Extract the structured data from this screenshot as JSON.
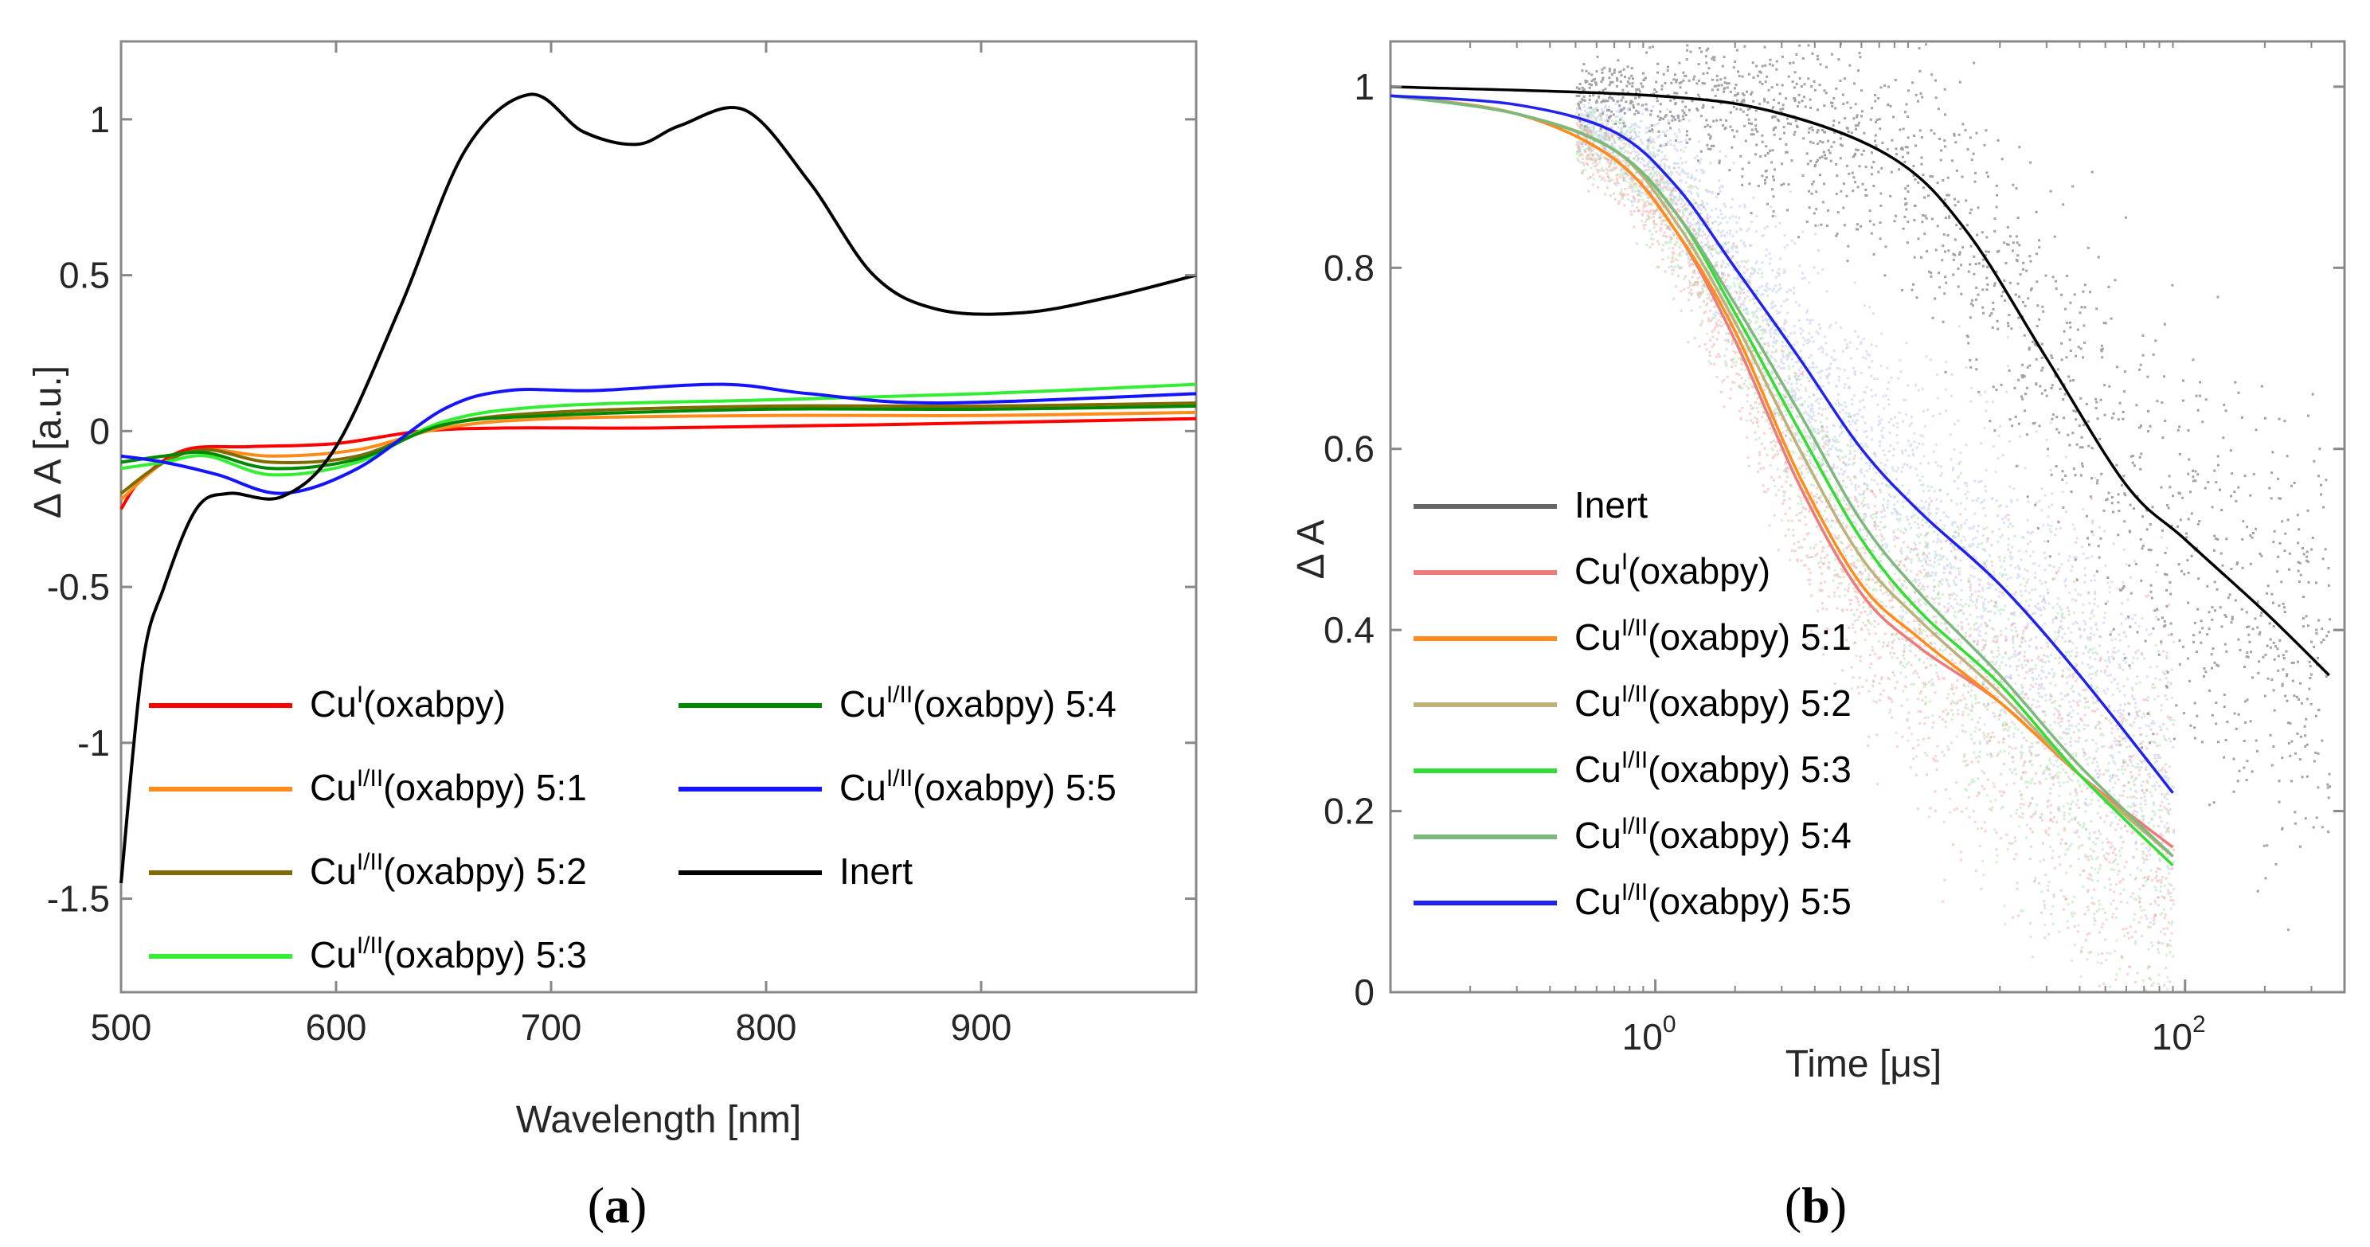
{
  "chart_data": [
    {
      "type": "line",
      "panel_label": "a",
      "xlabel": "Wavelength [nm]",
      "ylabel": "Δ A [a.u.]",
      "xlim": [
        500,
        1000
      ],
      "ylim": [
        -1.8,
        1.25
      ],
      "xticks": [
        500,
        600,
        700,
        800,
        900
      ],
      "yticks": [
        -1.5,
        -1,
        -0.5,
        0,
        0.5,
        1
      ],
      "xtick_labels": [
        "500",
        "600",
        "700",
        "800",
        "900"
      ],
      "ytick_labels": [
        "-1.5",
        "-1",
        "-0.5",
        "0",
        "0.5",
        "1"
      ],
      "grid": false,
      "legend_position": "lower-left",
      "series": [
        {
          "name": "Cu(oxabpy)",
          "legend_base": "Cu",
          "legend_sup": "I",
          "legend_rest": "(oxabpy)",
          "color": "#ff0000",
          "x": [
            500,
            510,
            530,
            560,
            600,
            640,
            680,
            750,
            850,
            1000
          ],
          "y": [
            -0.25,
            -0.15,
            -0.06,
            -0.05,
            -0.04,
            0.0,
            0.01,
            0.01,
            0.02,
            0.04
          ]
        },
        {
          "name": "Cu(oxabpy) 5:1",
          "legend_base": "Cu",
          "legend_sup": "I/II",
          "legend_rest": "(oxabpy) 5:1",
          "color": "#ff8c1a",
          "x": [
            500,
            520,
            540,
            570,
            610,
            650,
            700,
            800,
            900,
            1000
          ],
          "y": [
            -0.22,
            -0.1,
            -0.06,
            -0.08,
            -0.06,
            0.01,
            0.04,
            0.05,
            0.05,
            0.06
          ]
        },
        {
          "name": "Cu(oxabpy) 5:2",
          "legend_base": "Cu",
          "legend_sup": "I/II",
          "legend_rest": "(oxabpy) 5:2",
          "color": "#7f6b00",
          "x": [
            500,
            520,
            540,
            570,
            610,
            650,
            700,
            800,
            900,
            1000
          ],
          "y": [
            -0.2,
            -0.1,
            -0.06,
            -0.1,
            -0.08,
            0.02,
            0.06,
            0.08,
            0.08,
            0.09
          ]
        },
        {
          "name": "Cu(oxabpy) 5:3",
          "legend_base": "Cu",
          "legend_sup": "I/II",
          "legend_rest": "(oxabpy) 5:3",
          "color": "#33ee33",
          "x": [
            500,
            520,
            540,
            570,
            610,
            650,
            700,
            800,
            900,
            1000
          ],
          "y": [
            -0.12,
            -0.1,
            -0.08,
            -0.14,
            -0.1,
            0.03,
            0.08,
            0.1,
            0.12,
            0.15
          ]
        },
        {
          "name": "Cu(oxabpy) 5:4",
          "legend_base": "Cu",
          "legend_sup": "I/II",
          "legend_rest": "(oxabpy) 5:4",
          "color": "#008800",
          "x": [
            500,
            520,
            540,
            570,
            610,
            650,
            700,
            800,
            900,
            1000
          ],
          "y": [
            -0.1,
            -0.08,
            -0.07,
            -0.12,
            -0.09,
            0.02,
            0.05,
            0.07,
            0.07,
            0.08
          ]
        },
        {
          "name": "Cu(oxabpy) 5:5",
          "legend_base": "Cu",
          "legend_sup": "I/II",
          "legend_rest": "(oxabpy) 5:5",
          "color": "#1414ff",
          "x": [
            500,
            520,
            545,
            575,
            610,
            650,
            680,
            720,
            780,
            820,
            880,
            1000
          ],
          "y": [
            -0.08,
            -0.1,
            -0.14,
            -0.2,
            -0.12,
            0.07,
            0.13,
            0.13,
            0.15,
            0.12,
            0.09,
            0.12
          ]
        },
        {
          "name": "Inert",
          "legend_base": "Inert",
          "legend_sup": "",
          "legend_rest": "",
          "color": "#000000",
          "x": [
            500,
            510,
            520,
            535,
            550,
            575,
            600,
            630,
            660,
            690,
            715,
            740,
            760,
            790,
            820,
            850,
            880,
            920,
            960,
            1000
          ],
          "y": [
            -1.45,
            -0.75,
            -0.5,
            -0.25,
            -0.2,
            -0.21,
            -0.05,
            0.4,
            0.9,
            1.08,
            0.96,
            0.92,
            0.98,
            1.03,
            0.8,
            0.5,
            0.39,
            0.38,
            0.43,
            0.5
          ]
        }
      ]
    },
    {
      "type": "line",
      "panel_label": "b",
      "xscale": "log",
      "xlabel": "Time [μs]",
      "ylabel": "Δ A",
      "xlim": [
        0.1,
        400
      ],
      "ylim": [
        0,
        1.05
      ],
      "xticks": [
        1,
        100
      ],
      "xtick_labels": [
        "10",
        "10"
      ],
      "xtick_exponents": [
        "0",
        "2"
      ],
      "yticks": [
        0,
        0.2,
        0.4,
        0.6,
        0.8,
        1
      ],
      "ytick_labels": [
        "0",
        "0.2",
        "0.4",
        "0.6",
        "0.8",
        "1"
      ],
      "grid": false,
      "legend_position": "lower-left",
      "series": [
        {
          "name": "Inert",
          "legend_base": "Inert",
          "legend_sup": "",
          "legend_rest": "",
          "color": "#666666",
          "x": [
            0.1,
            1,
            3,
            8,
            15,
            30,
            60,
            100,
            200,
            350
          ],
          "y": [
            1.0,
            0.99,
            0.97,
            0.92,
            0.84,
            0.7,
            0.56,
            0.5,
            0.42,
            0.35
          ]
        },
        {
          "name": "Cu(oxabpy)",
          "legend_base": "Cu",
          "legend_sup": "I",
          "legend_rest": "(oxabpy)",
          "color": "#ee7a7a",
          "x": [
            0.1,
            0.3,
            0.7,
            1.2,
            2,
            3.5,
            6,
            10,
            20,
            40,
            90
          ],
          "y": [
            0.99,
            0.97,
            0.92,
            0.84,
            0.72,
            0.56,
            0.44,
            0.38,
            0.32,
            0.24,
            0.16
          ]
        },
        {
          "name": "Cu(oxabpy) 5:1",
          "legend_base": "Cu",
          "legend_sup": "I/II",
          "legend_rest": "(oxabpy) 5:1",
          "color": "#ff8c1a",
          "x": [
            0.1,
            0.3,
            0.7,
            1.2,
            2,
            3.5,
            6,
            10,
            20,
            40,
            90
          ],
          "y": [
            0.99,
            0.97,
            0.92,
            0.84,
            0.73,
            0.57,
            0.45,
            0.39,
            0.32,
            0.24,
            0.15
          ]
        },
        {
          "name": "Cu(oxabpy) 5:2",
          "legend_base": "Cu",
          "legend_sup": "I/II",
          "legend_rest": "(oxabpy) 5:2",
          "color": "#bcb27a",
          "x": [
            0.1,
            0.3,
            0.7,
            1.2,
            2,
            3.5,
            6,
            10,
            20,
            40,
            90
          ],
          "y": [
            0.99,
            0.97,
            0.93,
            0.85,
            0.74,
            0.6,
            0.48,
            0.41,
            0.33,
            0.24,
            0.15
          ]
        },
        {
          "name": "Cu(oxabpy) 5:3",
          "legend_base": "Cu",
          "legend_sup": "I/II",
          "legend_rest": "(oxabpy) 5:3",
          "color": "#33dd33",
          "x": [
            0.1,
            0.3,
            0.7,
            1.2,
            2,
            3.5,
            6,
            10,
            20,
            40,
            90
          ],
          "y": [
            0.99,
            0.97,
            0.93,
            0.86,
            0.75,
            0.62,
            0.5,
            0.42,
            0.34,
            0.24,
            0.14
          ]
        },
        {
          "name": "Cu(oxabpy) 5:4",
          "legend_base": "Cu",
          "legend_sup": "I/II",
          "legend_rest": "(oxabpy) 5:4",
          "color": "#7fb87f",
          "x": [
            0.1,
            0.3,
            0.7,
            1.2,
            2,
            3.5,
            6,
            10,
            20,
            40,
            90
          ],
          "y": [
            0.99,
            0.97,
            0.93,
            0.86,
            0.76,
            0.64,
            0.52,
            0.44,
            0.35,
            0.25,
            0.15
          ]
        },
        {
          "name": "Cu(oxabpy) 5:5",
          "legend_base": "Cu",
          "legend_sup": "I/II",
          "legend_rest": "(oxabpy) 5:5",
          "color": "#2222ee",
          "x": [
            0.1,
            0.3,
            0.7,
            1.2,
            2,
            3.5,
            6,
            10,
            20,
            40,
            90
          ],
          "y": [
            0.99,
            0.98,
            0.95,
            0.89,
            0.8,
            0.7,
            0.6,
            0.53,
            0.45,
            0.35,
            0.22
          ]
        }
      ]
    }
  ]
}
